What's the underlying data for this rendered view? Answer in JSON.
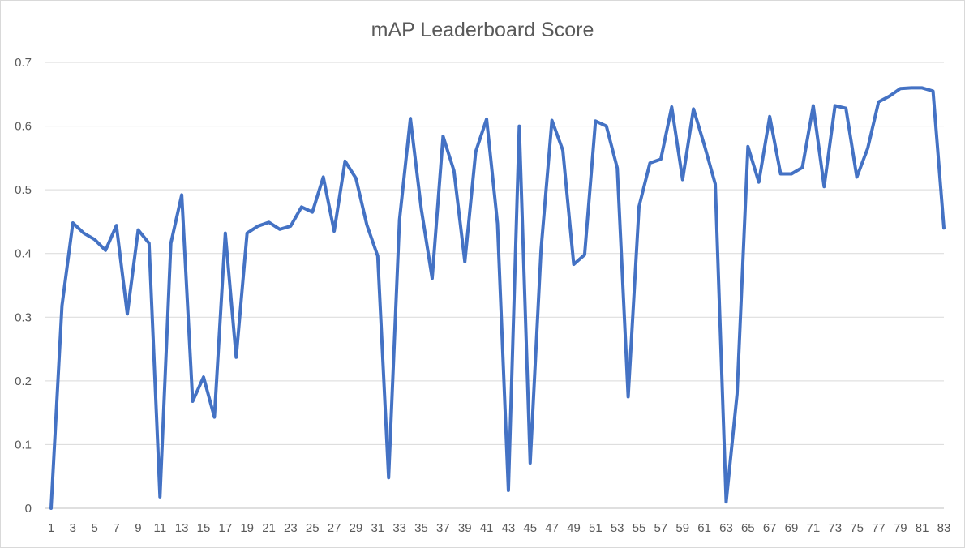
{
  "chart_data": {
    "type": "line",
    "title": "mAP Leaderboard Score",
    "xlabel": "",
    "ylabel": "",
    "ylim": [
      0,
      0.7
    ],
    "y_ticks": [
      "0",
      "0.1",
      "0.2",
      "0.3",
      "0.4",
      "0.5",
      "0.6",
      "0.7"
    ],
    "x_tick_labels": [
      "1",
      "3",
      "5",
      "7",
      "9",
      "11",
      "13",
      "15",
      "17",
      "19",
      "21",
      "23",
      "25",
      "27",
      "29",
      "31",
      "33",
      "35",
      "37",
      "39",
      "41",
      "43",
      "45",
      "47",
      "49",
      "51",
      "53",
      "55",
      "57",
      "59",
      "61",
      "63",
      "65",
      "67",
      "69",
      "71",
      "73",
      "75",
      "77",
      "79",
      "81",
      "83"
    ],
    "grid": true,
    "legend": "none",
    "x": [
      1,
      2,
      3,
      4,
      5,
      6,
      7,
      8,
      9,
      10,
      11,
      12,
      13,
      14,
      15,
      16,
      17,
      18,
      19,
      20,
      21,
      22,
      23,
      24,
      25,
      26,
      27,
      28,
      29,
      30,
      31,
      32,
      33,
      34,
      35,
      36,
      37,
      38,
      39,
      40,
      41,
      42,
      43,
      44,
      45,
      46,
      47,
      48,
      49,
      50,
      51,
      52,
      53,
      54,
      55,
      56,
      57,
      58,
      59,
      60,
      61,
      62,
      63,
      64,
      65,
      66,
      67,
      68,
      69,
      70,
      71,
      72,
      73,
      74,
      75,
      76,
      77,
      78,
      79,
      80,
      81,
      82,
      83
    ],
    "series": [
      {
        "color": "#4472c4",
        "values": [
          0.0,
          0.318,
          0.448,
          0.432,
          0.422,
          0.405,
          0.444,
          0.305,
          0.437,
          0.416,
          0.018,
          0.416,
          0.492,
          0.168,
          0.206,
          0.143,
          0.432,
          0.237,
          0.432,
          0.443,
          0.449,
          0.438,
          0.443,
          0.473,
          0.465,
          0.52,
          0.435,
          0.545,
          0.518,
          0.445,
          0.396,
          0.048,
          0.453,
          0.612,
          0.47,
          0.361,
          0.584,
          0.53,
          0.387,
          0.56,
          0.611,
          0.447,
          0.028,
          0.6,
          0.071,
          0.406,
          0.609,
          0.562,
          0.383,
          0.398,
          0.608,
          0.6,
          0.534,
          0.175,
          0.474,
          0.542,
          0.548,
          0.63,
          0.516,
          0.627,
          0.57,
          0.509,
          0.01,
          0.179,
          0.568,
          0.512,
          0.615,
          0.525,
          0.525,
          0.535,
          0.632,
          0.505,
          0.632,
          0.628,
          0.52,
          0.565,
          0.638,
          0.647,
          0.659,
          0.66,
          0.66,
          0.655,
          0.44
        ]
      }
    ]
  }
}
